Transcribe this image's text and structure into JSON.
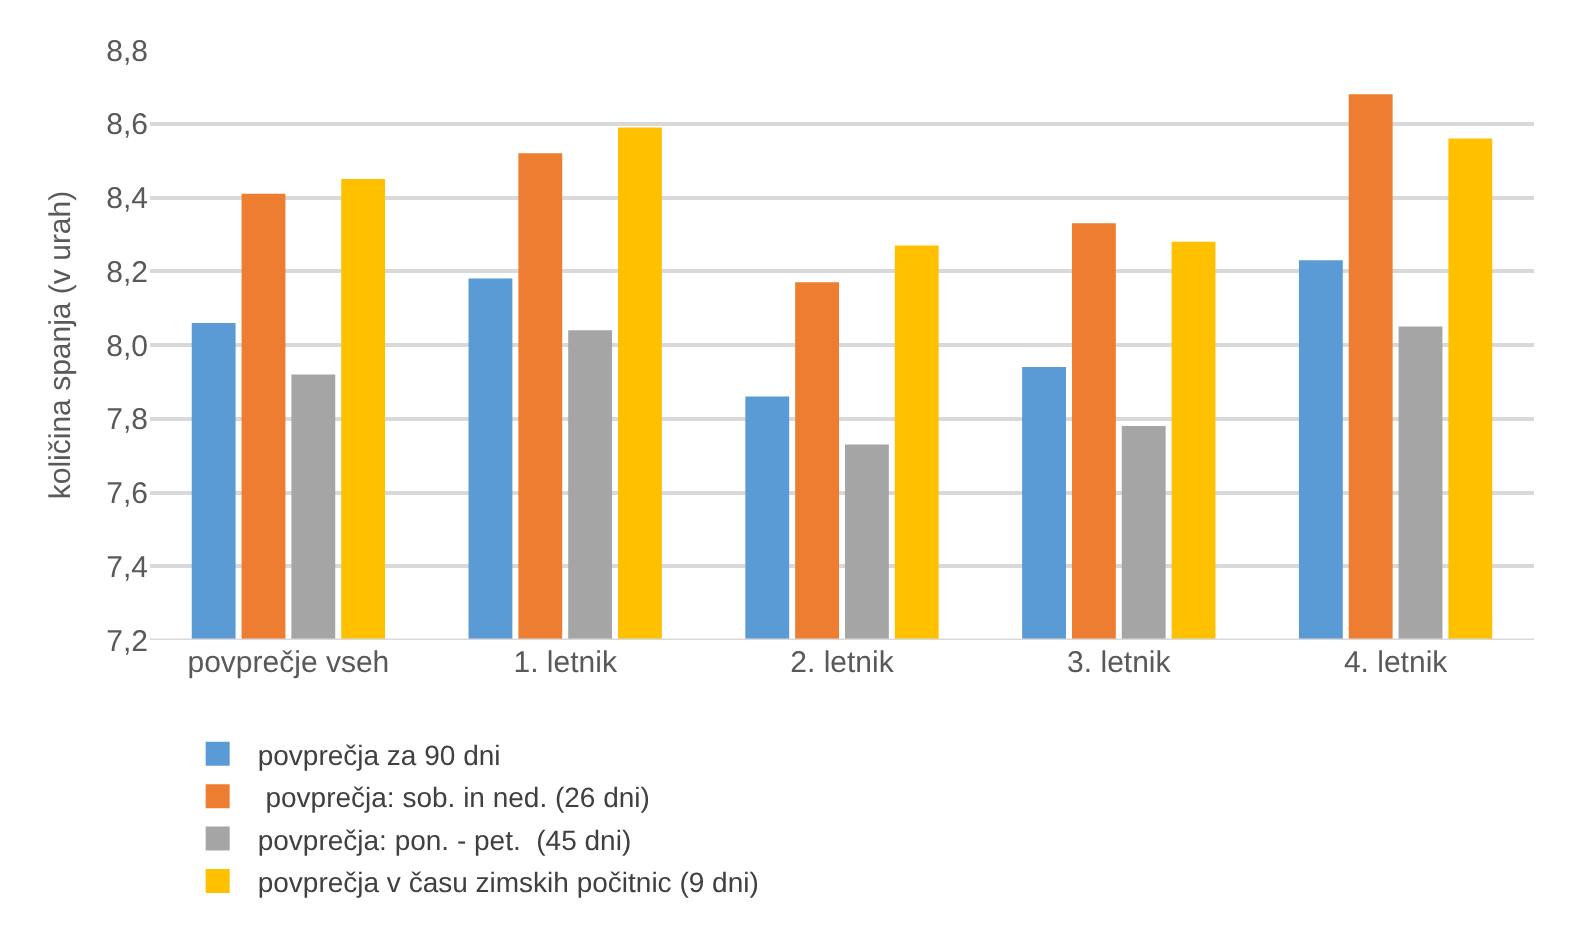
{
  "chart_data": {
    "type": "bar",
    "ylabel": "količina spanja (v urah)",
    "categories": [
      "povprečje vseh",
      "1. letnik",
      "2. letnik",
      "3. letnik",
      "4. letnik"
    ],
    "series": [
      {
        "name": "povprečja za 90 dni",
        "color": "#5b9bd5",
        "values": [
          8.06,
          8.18,
          7.86,
          7.94,
          8.23
        ]
      },
      {
        "name": " povprečja: sob. in ned. (26 dni)",
        "color": "#ed7d31",
        "values": [
          8.41,
          8.52,
          8.17,
          8.33,
          8.68
        ]
      },
      {
        "name": "povprečja: pon. - pet.  (45 dni)",
        "color": "#a5a5a5",
        "values": [
          7.92,
          8.04,
          7.73,
          7.78,
          8.05
        ]
      },
      {
        "name": "povprečja v času zimskih počitnic (9 dni)",
        "color": "#ffc000",
        "values": [
          8.45,
          8.59,
          8.27,
          8.28,
          8.56
        ]
      }
    ],
    "ylim": [
      7.2,
      8.8
    ],
    "yticks": [
      {
        "value": 7.2,
        "label": "7,2"
      },
      {
        "value": 7.4,
        "label": "7,4"
      },
      {
        "value": 7.6,
        "label": "7,6"
      },
      {
        "value": 7.8,
        "label": "7,8"
      },
      {
        "value": 8.0,
        "label": "8,0"
      },
      {
        "value": 8.2,
        "label": "8,2"
      },
      {
        "value": 8.4,
        "label": "8,4"
      },
      {
        "value": 8.6,
        "label": "8,6"
      },
      {
        "value": 8.8,
        "label": "8,8"
      }
    ],
    "grid": "y",
    "legend": "bottom"
  }
}
